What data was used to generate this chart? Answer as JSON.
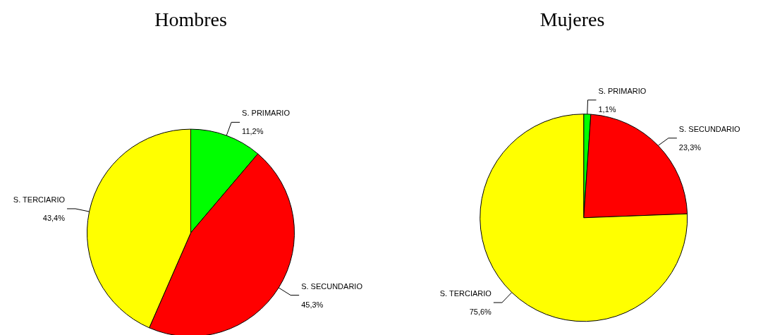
{
  "chart_data": [
    {
      "type": "pie",
      "title": "Hombres",
      "categories": [
        "S. PRIMARIO",
        "S. SECUNDARIO",
        "S. TERCIARIO"
      ],
      "values": [
        11.2,
        45.3,
        43.4
      ],
      "value_labels": [
        "11,2%",
        "45,3%",
        "43,4%"
      ],
      "colors": [
        "#00ff00",
        "#ff0000",
        "#ffff00"
      ],
      "legend": false
    },
    {
      "type": "pie",
      "title": "Mujeres",
      "categories": [
        "S. PRIMARIO",
        "S. SECUNDARIO",
        "S. TERCIARIO"
      ],
      "values": [
        1.1,
        23.3,
        75.6
      ],
      "value_labels": [
        "1,1%",
        "23,3%",
        "75,6%"
      ],
      "colors": [
        "#00ff00",
        "#ff0000",
        "#ffff00"
      ],
      "legend": false
    }
  ]
}
